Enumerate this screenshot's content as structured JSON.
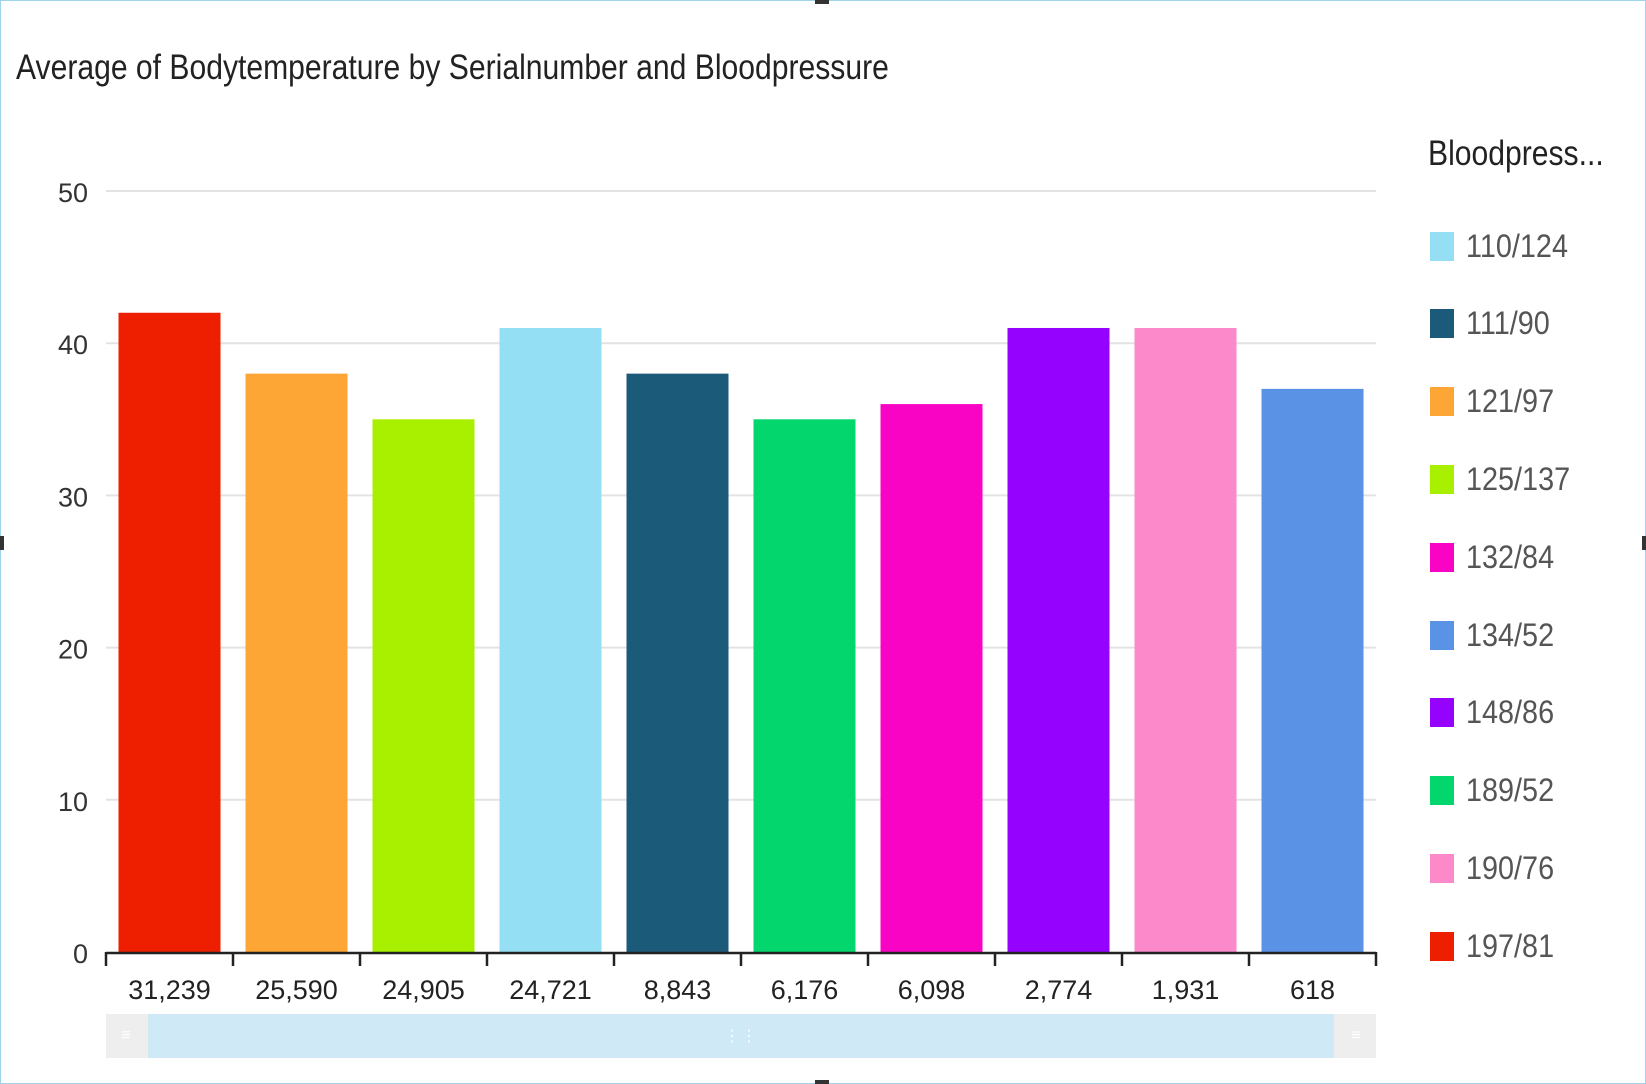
{
  "chart_data": {
    "type": "bar",
    "title": "Average of Bodytemperature by Serialnumber and Bloodpressure",
    "xlabel": "",
    "ylabel": "",
    "ylim": [
      0,
      50
    ],
    "yticks": [
      "0",
      "10",
      "20",
      "30",
      "40",
      "50"
    ],
    "grid": true,
    "legend_title": "Bloodpress...",
    "legend_position": "right",
    "categories": [
      "31,239",
      "25,590",
      "24,905",
      "24,721",
      "8,843",
      "6,176",
      "6,098",
      "2,774",
      "1,931",
      "618"
    ],
    "values": [
      42,
      38,
      35,
      41,
      38,
      35,
      36,
      41,
      41,
      37
    ],
    "bar_series": [
      "197/81",
      "121/97",
      "125/137",
      "110/124",
      "111/90",
      "189/52",
      "132/84",
      "148/86",
      "190/76",
      "134/52"
    ],
    "legend": [
      {
        "label": "110/124",
        "color": "#95dff5"
      },
      {
        "label": "111/90",
        "color": "#1c5a7a"
      },
      {
        "label": "121/97",
        "color": "#fda535"
      },
      {
        "label": "125/137",
        "color": "#a9ef00"
      },
      {
        "label": "132/84",
        "color": "#f904c4"
      },
      {
        "label": "134/52",
        "color": "#5a92e6"
      },
      {
        "label": "148/86",
        "color": "#9503fe"
      },
      {
        "label": "189/52",
        "color": "#02d66c"
      },
      {
        "label": "190/76",
        "color": "#fc8aca"
      },
      {
        "label": "197/81",
        "color": "#ee1e00"
      }
    ]
  }
}
